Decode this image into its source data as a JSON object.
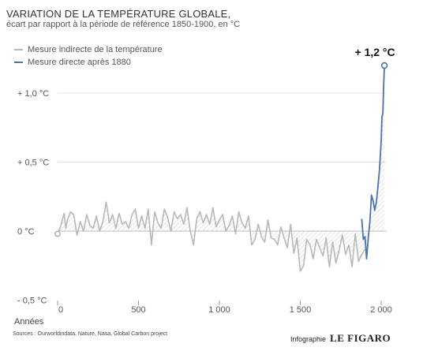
{
  "header": {
    "title": "VARIATION DE LA TEMPÉRATURE GLOBALE,",
    "subtitle": "écart par rapport à la période de référence 1850-1900, en °C"
  },
  "legend": {
    "items": [
      {
        "label": "Mesure indirecte de la température",
        "color": "#b8b8b8"
      },
      {
        "label": "Mesure directe après 1880",
        "color": "#4a73b0"
      }
    ]
  },
  "annotation": {
    "label": "+ 1,2 °C"
  },
  "footer": {
    "sources": "Sources : Ourworldindata, Nature, Nasa, Global Carbon project",
    "credit_prefix": "Infographie",
    "credit_brand": "LE FIGARO"
  },
  "chart_data": {
    "type": "line",
    "xlabel": "Années",
    "ylabel": "",
    "xlim": [
      0,
      2020
    ],
    "ylim": [
      -0.5,
      1.3
    ],
    "y_ticks": [
      {
        "value": -0.5,
        "label": "- 0,5 °C"
      },
      {
        "value": 0,
        "label": "0 °C"
      },
      {
        "value": 0.5,
        "label": "+ 0,5 °C"
      },
      {
        "value": 1.0,
        "label": "+ 1,0 °C"
      }
    ],
    "x_ticks": [
      {
        "value": 0,
        "label": "0"
      },
      {
        "value": 500,
        "label": "500"
      },
      {
        "value": 1000,
        "label": "1 000"
      },
      {
        "value": 1500,
        "label": "1 500"
      },
      {
        "value": 2000,
        "label": "2 000"
      }
    ],
    "grid": true,
    "series": [
      {
        "name": "Mesure indirecte de la température",
        "color": "#b8b8b8",
        "x": [
          0,
          20,
          40,
          50,
          60,
          80,
          100,
          120,
          140,
          160,
          180,
          200,
          220,
          240,
          260,
          280,
          300,
          320,
          340,
          360,
          380,
          400,
          420,
          440,
          460,
          480,
          500,
          520,
          540,
          560,
          580,
          600,
          620,
          640,
          660,
          680,
          700,
          720,
          740,
          760,
          780,
          800,
          820,
          840,
          860,
          880,
          900,
          920,
          940,
          960,
          980,
          1000,
          1020,
          1040,
          1060,
          1080,
          1100,
          1120,
          1140,
          1160,
          1180,
          1200,
          1220,
          1240,
          1260,
          1280,
          1300,
          1320,
          1340,
          1360,
          1380,
          1400,
          1420,
          1440,
          1460,
          1480,
          1500,
          1520,
          1540,
          1560,
          1580,
          1600,
          1620,
          1640,
          1660,
          1680,
          1700,
          1720,
          1740,
          1760,
          1780,
          1800,
          1820,
          1840,
          1860,
          1880,
          1900
        ],
        "y": [
          -0.02,
          0.04,
          0.13,
          0.02,
          0.08,
          0.14,
          0.12,
          -0.03,
          0.07,
          0.0,
          0.12,
          0.04,
          0.02,
          0.11,
          0.0,
          0.07,
          0.21,
          0.06,
          0.12,
          0.02,
          0.13,
          0.05,
          0.07,
          0.02,
          0.12,
          0.16,
          0.02,
          0.11,
          0.02,
          0.16,
          -0.1,
          0.14,
          0.06,
          0.02,
          0.16,
          0.1,
          0.0,
          0.14,
          0.09,
          0.12,
          0.05,
          0.17,
          0.0,
          -0.1,
          0.09,
          0.14,
          0.06,
          0.12,
          0.05,
          0.17,
          0.03,
          0.08,
          0.12,
          0.0,
          0.04,
          0.11,
          -0.02,
          0.14,
          0.06,
          0.02,
          0.11,
          -0.1,
          -0.06,
          0.05,
          -0.04,
          -0.08,
          0.08,
          -0.05,
          -0.06,
          -0.1,
          0.03,
          -0.05,
          -0.12,
          0.05,
          -0.16,
          -0.05,
          -0.29,
          -0.25,
          -0.06,
          -0.1,
          -0.2,
          -0.06,
          -0.12,
          -0.18,
          -0.05,
          -0.26,
          -0.08,
          -0.23,
          -0.14,
          -0.03,
          -0.17,
          -0.1,
          -0.26,
          -0.02,
          -0.22,
          -0.17,
          -0.13
        ]
      },
      {
        "name": "Mesure directe après 1880",
        "color": "#4a73b0",
        "x": [
          1880,
          1890,
          1900,
          1910,
          1920,
          1930,
          1940,
          1950,
          1960,
          1970,
          1980,
          1990,
          2000,
          2005,
          2010,
          2015,
          2020
        ],
        "y": [
          0.09,
          -0.06,
          -0.04,
          -0.2,
          -0.05,
          0.06,
          0.26,
          0.22,
          0.15,
          0.21,
          0.32,
          0.45,
          0.65,
          0.83,
          0.85,
          1.05,
          1.2
        ]
      }
    ]
  }
}
